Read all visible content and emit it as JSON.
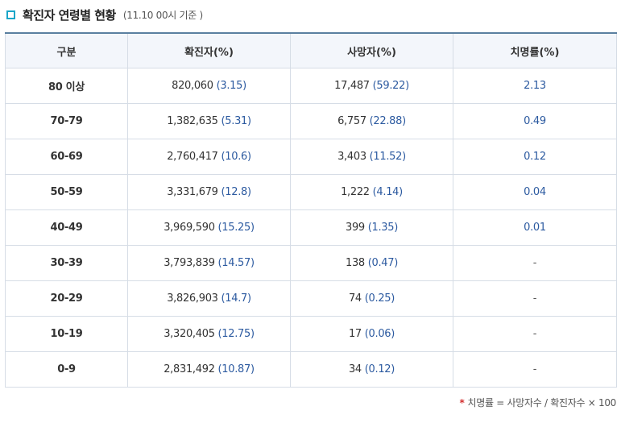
{
  "header": {
    "title": "확진자 연령별 현황",
    "subtitle": "(11.10 00시 기준 )"
  },
  "table": {
    "columns": [
      "구분",
      "확진자(%)",
      "사망자(%)",
      "치명률(%)"
    ],
    "rows": [
      {
        "age": "80 이상",
        "cases": "820,060",
        "cases_pct": "(3.15)",
        "deaths": "17,487",
        "deaths_pct": "(59.22)",
        "fatality": "2.13"
      },
      {
        "age": "70-79",
        "cases": "1,382,635",
        "cases_pct": "(5.31)",
        "deaths": "6,757",
        "deaths_pct": "(22.88)",
        "fatality": "0.49"
      },
      {
        "age": "60-69",
        "cases": "2,760,417",
        "cases_pct": "(10.6)",
        "deaths": "3,403",
        "deaths_pct": "(11.52)",
        "fatality": "0.12"
      },
      {
        "age": "50-59",
        "cases": "3,331,679",
        "cases_pct": "(12.8)",
        "deaths": "1,222",
        "deaths_pct": "(4.14)",
        "fatality": "0.04"
      },
      {
        "age": "40-49",
        "cases": "3,969,590",
        "cases_pct": "(15.25)",
        "deaths": "399",
        "deaths_pct": "(1.35)",
        "fatality": "0.01"
      },
      {
        "age": "30-39",
        "cases": "3,793,839",
        "cases_pct": "(14.57)",
        "deaths": "138",
        "deaths_pct": "(0.47)",
        "fatality": "-"
      },
      {
        "age": "20-29",
        "cases": "3,826,903",
        "cases_pct": "(14.7)",
        "deaths": "74",
        "deaths_pct": "(0.25)",
        "fatality": "-"
      },
      {
        "age": "10-19",
        "cases": "3,320,405",
        "cases_pct": "(12.75)",
        "deaths": "17",
        "deaths_pct": "(0.06)",
        "fatality": "-"
      },
      {
        "age": "0-9",
        "cases": "2,831,492",
        "cases_pct": "(10.87)",
        "deaths": "34",
        "deaths_pct": "(0.12)",
        "fatality": "-"
      }
    ]
  },
  "footnote": {
    "marker": "*",
    "text": "치명률 = 사망자수 / 확진자수 × 100"
  },
  "colors": {
    "accent": "#1aa6c9",
    "header_bg": "#f3f6fb",
    "border": "#d6dde6",
    "pct_text": "#2c5aa0",
    "footnote_marker": "#d32f2f"
  },
  "icons": {
    "title_bullet": "square-bullet-icon"
  }
}
